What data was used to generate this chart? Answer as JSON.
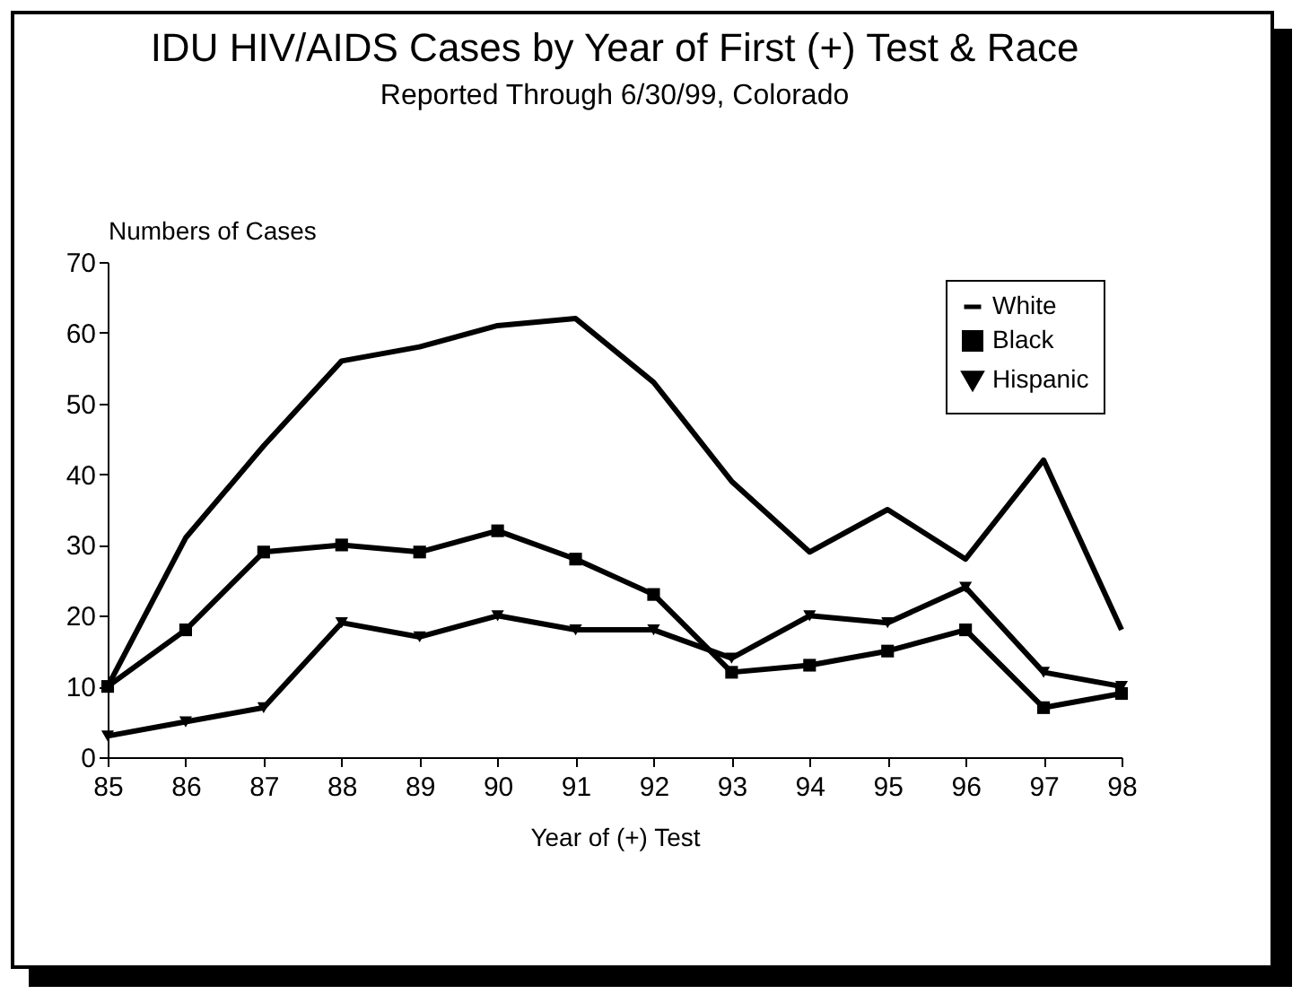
{
  "chart_data": {
    "type": "line",
    "title": "IDU HIV/AIDS Cases by Year of First (+) Test & Race",
    "subtitle": "Reported  Through 6/30/99, Colorado",
    "xlabel": "Year of (+) Test",
    "ylabel": "Numbers of Cases",
    "categories": [
      "85",
      "86",
      "87",
      "88",
      "89",
      "90",
      "91",
      "92",
      "93",
      "94",
      "95",
      "96",
      "97",
      "98"
    ],
    "ylim": [
      0,
      70
    ],
    "yticks": [
      0,
      10,
      20,
      30,
      40,
      50,
      60,
      70
    ],
    "grid": false,
    "legend": "top right",
    "series": [
      {
        "name": "White",
        "color": "#000000",
        "marker": "none",
        "values": [
          10,
          31,
          44,
          56,
          58,
          61,
          62,
          53,
          39,
          29,
          35,
          28,
          42,
          18
        ]
      },
      {
        "name": "Black",
        "color": "#000000",
        "marker": "square",
        "values": [
          10,
          18,
          29,
          30,
          29,
          32,
          28,
          23,
          12,
          13,
          15,
          18,
          7,
          9
        ]
      },
      {
        "name": "Hispanic",
        "color": "#000000",
        "marker": "triangle",
        "values": [
          3,
          5,
          7,
          19,
          17,
          20,
          18,
          18,
          14,
          20,
          19,
          24,
          12,
          10
        ]
      }
    ]
  }
}
